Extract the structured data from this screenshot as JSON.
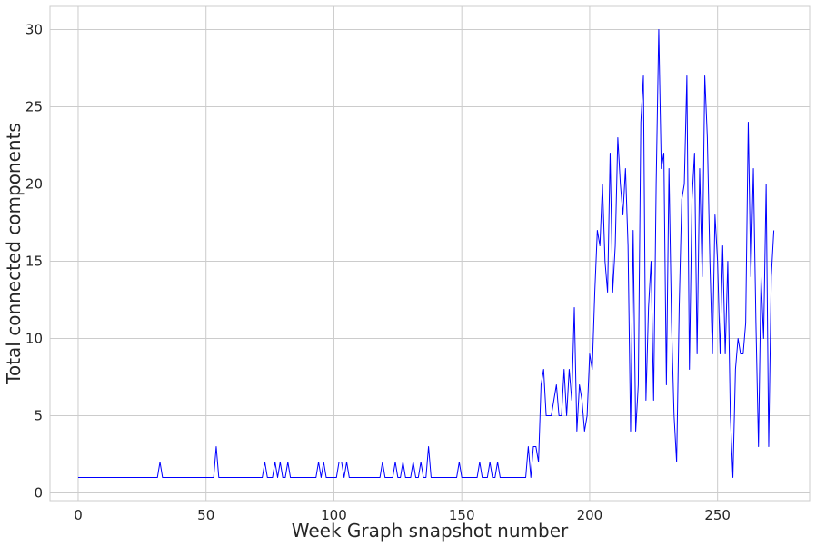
{
  "chart_data": {
    "type": "line",
    "title": "",
    "xlabel": "Week Graph snapshot number",
    "ylabel": "Total connected components",
    "xlim": [
      -11,
      286
    ],
    "ylim": [
      -0.5,
      31.5
    ],
    "xticks": [
      0,
      50,
      100,
      150,
      200,
      250
    ],
    "yticks": [
      0,
      5,
      10,
      15,
      20,
      25,
      30
    ],
    "grid": true,
    "legend": "none",
    "series": [
      {
        "color": "#0000ff",
        "x_start": 0,
        "x_step": 1,
        "values": [
          1,
          1,
          1,
          1,
          1,
          1,
          1,
          1,
          1,
          1,
          1,
          1,
          1,
          1,
          1,
          1,
          1,
          1,
          1,
          1,
          1,
          1,
          1,
          1,
          1,
          1,
          1,
          1,
          1,
          1,
          1,
          1,
          2,
          1,
          1,
          1,
          1,
          1,
          1,
          1,
          1,
          1,
          1,
          1,
          1,
          1,
          1,
          1,
          1,
          1,
          1,
          1,
          1,
          1,
          3,
          1,
          1,
          1,
          1,
          1,
          1,
          1,
          1,
          1,
          1,
          1,
          1,
          1,
          1,
          1,
          1,
          1,
          1,
          2,
          1,
          1,
          1,
          2,
          1,
          2,
          1,
          1,
          2,
          1,
          1,
          1,
          1,
          1,
          1,
          1,
          1,
          1,
          1,
          1,
          2,
          1,
          2,
          1,
          1,
          1,
          1,
          1,
          2,
          2,
          1,
          2,
          1,
          1,
          1,
          1,
          1,
          1,
          1,
          1,
          1,
          1,
          1,
          1,
          1,
          2,
          1,
          1,
          1,
          1,
          2,
          1,
          1,
          2,
          1,
          1,
          1,
          2,
          1,
          1,
          2,
          1,
          1,
          3,
          1,
          1,
          1,
          1,
          1,
          1,
          1,
          1,
          1,
          1,
          1,
          2,
          1,
          1,
          1,
          1,
          1,
          1,
          1,
          2,
          1,
          1,
          1,
          2,
          1,
          1,
          2,
          1,
          1,
          1,
          1,
          1,
          1,
          1,
          1,
          1,
          1,
          1,
          3,
          1,
          3,
          3,
          2,
          7,
          8,
          5,
          5,
          5,
          6,
          7,
          5,
          5,
          8,
          5,
          8,
          6,
          12,
          4,
          7,
          6,
          4,
          5,
          9,
          8,
          13,
          17,
          16,
          20,
          15,
          13,
          22,
          13,
          16,
          23,
          20,
          18,
          21,
          16,
          4,
          17,
          4,
          7,
          24,
          27,
          6,
          12,
          15,
          6,
          20,
          30,
          21,
          22,
          7,
          21,
          11,
          5,
          2,
          12,
          19,
          20,
          27,
          8,
          19,
          22,
          9,
          21,
          14,
          27,
          23,
          15,
          9,
          18,
          15,
          9,
          16,
          9,
          15,
          5,
          1,
          8,
          10,
          9,
          9,
          11,
          24,
          14,
          21,
          11,
          3,
          14,
          10,
          20,
          3,
          14,
          17
        ]
      }
    ]
  }
}
